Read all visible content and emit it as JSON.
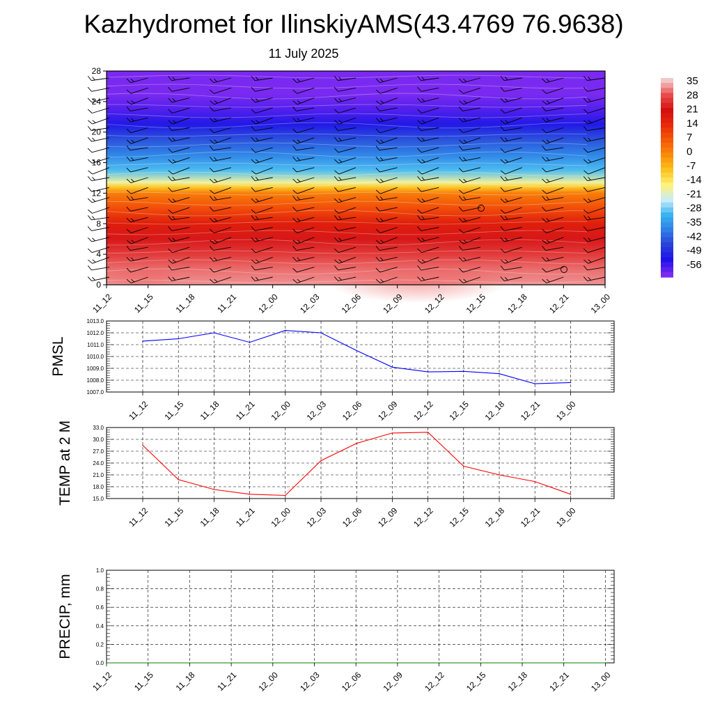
{
  "title": "Kazhydromet for IlinskiyAMS(43.4769 76.9638)",
  "subtitle": "11 July 2025",
  "colorbar": {
    "labels": [
      "35",
      "28",
      "21",
      "14",
      "7",
      "0",
      "-7",
      "-14",
      "-21",
      "-28",
      "-35",
      "-42",
      "-49",
      "-56"
    ],
    "colors": [
      "#f4c7c7",
      "#e84b4b",
      "#d40f0f",
      "#e82a0a",
      "#f45a08",
      "#fa8c0a",
      "#fcc21e",
      "#fff27a",
      "#c9ecf6",
      "#38b4f0",
      "#2f7fe6",
      "#2a42d8",
      "#1f12e8",
      "#7a2af0"
    ]
  },
  "chart_data": [
    {
      "type": "heatmap",
      "name": "vertical-section",
      "x": [
        "11_12",
        "11_15",
        "11_18",
        "11_21",
        "12_00",
        "12_03",
        "12_06",
        "12_09",
        "12_12",
        "12_15",
        "12_18",
        "12_21",
        "13_00"
      ],
      "yticks": [
        0,
        4,
        8,
        12,
        16,
        20,
        24,
        28
      ],
      "ylim": [
        0,
        28
      ],
      "color_range": [
        -56,
        35
      ],
      "stops": [
        {
          "h": 0,
          "v": 32
        },
        {
          "h": 2,
          "v": 30
        },
        {
          "h": 4,
          "v": 26
        },
        {
          "h": 6,
          "v": 22
        },
        {
          "h": 8,
          "v": 17
        },
        {
          "h": 10,
          "v": 9
        },
        {
          "h": 12,
          "v": 2
        },
        {
          "h": 12.8,
          "v": -8
        },
        {
          "h": 13.4,
          "v": -16
        },
        {
          "h": 15,
          "v": -27
        },
        {
          "h": 17,
          "v": -34
        },
        {
          "h": 19,
          "v": -40
        },
        {
          "h": 21,
          "v": -48
        },
        {
          "h": 23,
          "v": -53
        },
        {
          "h": 25,
          "v": -56
        },
        {
          "h": 28,
          "v": -60
        }
      ]
    },
    {
      "type": "line",
      "name": "pmsl",
      "ylabel": "PMSL",
      "x": [
        "11_12",
        "11_15",
        "11_18",
        "11_21",
        "12_00",
        "12_03",
        "12_06",
        "12_09",
        "12_12",
        "12_15",
        "12_18",
        "12_21",
        "13_00"
      ],
      "values": [
        1011.3,
        1011.5,
        1012.0,
        1011.2,
        1012.2,
        1012.0,
        1010.5,
        1009.1,
        1008.7,
        1008.75,
        1008.55,
        1007.7,
        1007.8
      ],
      "ylim": [
        1007.0,
        1013.0
      ],
      "yticks": [
        "1007.0",
        "1008.0",
        "1009.0",
        "1010.0",
        "1011.0",
        "1012.0",
        "1013.0"
      ],
      "color": "#0000ff"
    },
    {
      "type": "line",
      "name": "temp",
      "ylabel": "TEMP at 2 M",
      "x": [
        "11_12",
        "11_15",
        "11_18",
        "11_21",
        "12_00",
        "12_03",
        "12_06",
        "12_09",
        "12_12",
        "12_15",
        "12_18",
        "12_21",
        "13_00"
      ],
      "values": [
        28.5,
        19.8,
        17.3,
        16.1,
        15.8,
        24.6,
        29.0,
        31.6,
        31.8,
        23.2,
        21.0,
        19.3,
        16.1
      ],
      "ylim": [
        15.0,
        33.0
      ],
      "yticks": [
        "15.0",
        "18.0",
        "21.0",
        "24.0",
        "27.0",
        "30.0",
        "33.0"
      ],
      "color": "#ff0000"
    },
    {
      "type": "line",
      "name": "precip",
      "ylabel": "PRECIP, mm",
      "x": [
        "11_12",
        "11_15",
        "11_18",
        "11_21",
        "12_00",
        "12_03",
        "12_06",
        "12_09",
        "12_12",
        "12_15",
        "12_18",
        "12_21",
        "13_00"
      ],
      "values": [
        0,
        0,
        0,
        0,
        0,
        0,
        0,
        0,
        0,
        0,
        0,
        0,
        0
      ],
      "ylim": [
        0.0,
        1.0
      ],
      "yticks": [
        "0.0",
        "0.2",
        "0.4",
        "0.6",
        "0.8",
        "1.0"
      ],
      "color": "#008000"
    }
  ]
}
